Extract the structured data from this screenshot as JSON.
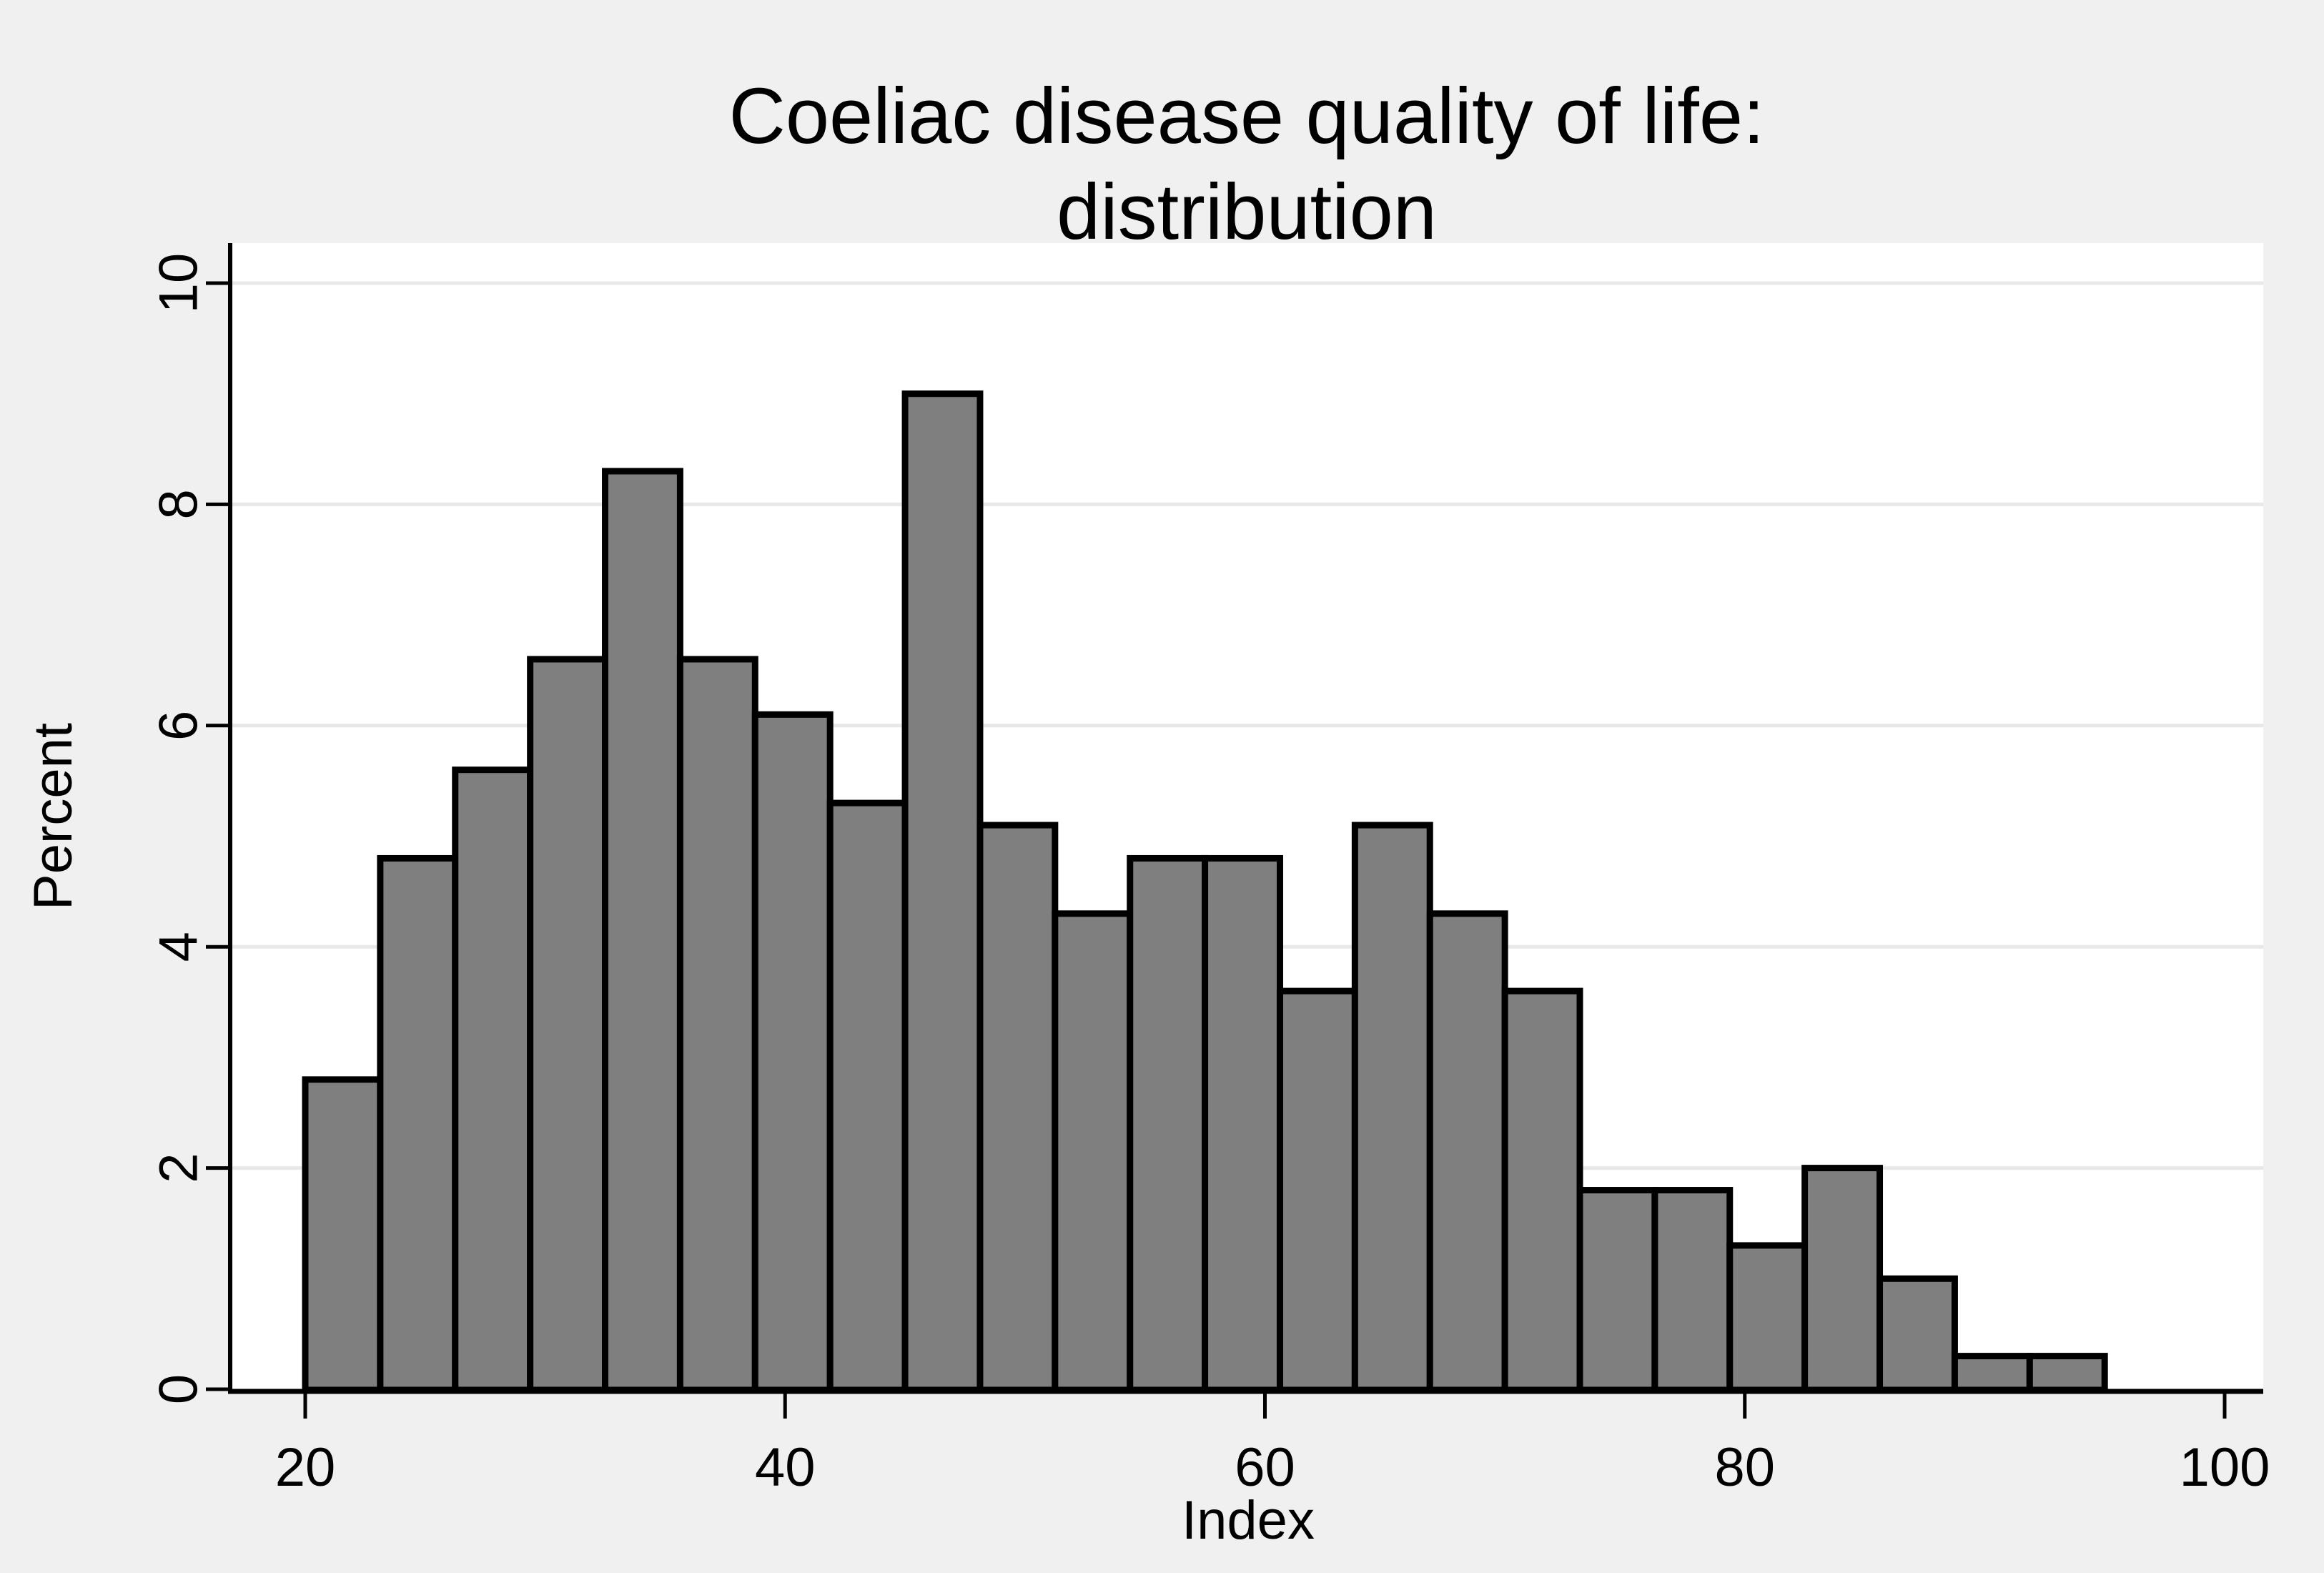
{
  "chart_data": {
    "type": "histogram",
    "title": "Coeliac disease quality of life: distribution",
    "title_lines": [
      "Coeliac disease quality of life:",
      "distribution"
    ],
    "xlabel": "Index",
    "ylabel": "Percent",
    "x_ticks": [
      20,
      40,
      60,
      80,
      100
    ],
    "y_ticks": [
      0,
      2,
      4,
      6,
      8,
      10
    ],
    "xlim": [
      20,
      100
    ],
    "ylim": [
      0,
      10
    ],
    "grid": "horizontal-only",
    "legend": "none",
    "bin_start": 20,
    "bin_width": 3.125,
    "n_bins": 24,
    "percent_values": [
      2.8,
      4.8,
      5.6,
      6.6,
      8.3,
      6.6,
      6.1,
      5.3,
      9.0,
      5.1,
      4.3,
      4.8,
      4.8,
      3.6,
      5.1,
      4.3,
      3.6,
      1.8,
      1.8,
      1.3,
      2.0,
      1.0,
      0.3,
      0.3
    ],
    "colors": {
      "bar_fill": "#7f7f7f",
      "bar_border": "#000000",
      "plot_background": "#ffffff",
      "outer_background": "#f0f0f0",
      "gridline": "#e8e8e8",
      "axis": "#000000",
      "text": "#000000"
    }
  }
}
